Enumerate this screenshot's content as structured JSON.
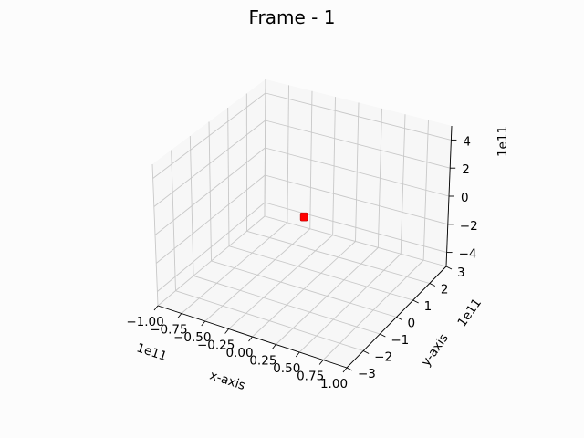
{
  "chart_data": {
    "type": "scatter",
    "title": "Frame - 1",
    "xlabel": "x-axis",
    "ylabel": "y-axis",
    "zlabel": "",
    "x_offset": "1e11",
    "y_offset": "1e11",
    "z_offset": "1e11",
    "xlim": [
      -1.0,
      1.0
    ],
    "ylim": [
      -3,
      3
    ],
    "zlim": [
      -5,
      5
    ],
    "x_ticks": [
      "−1.00",
      "−0.75",
      "−0.50",
      "−0.25",
      "0.00",
      "0.25",
      "0.50",
      "0.75",
      "1.00"
    ],
    "y_ticks": [
      "−3",
      "−2",
      "−1",
      "0",
      "1",
      "2",
      "3"
    ],
    "z_ticks": [
      "−4",
      "−2",
      "0",
      "2",
      "4"
    ],
    "grid": true,
    "points": [
      {
        "x": 0.0,
        "y": 0.0,
        "z": 0.0,
        "color": "#ff0000"
      }
    ],
    "point_color": "#ff0000",
    "pane_color": "#f2f2f2",
    "grid_color": "#c8c8c8"
  }
}
